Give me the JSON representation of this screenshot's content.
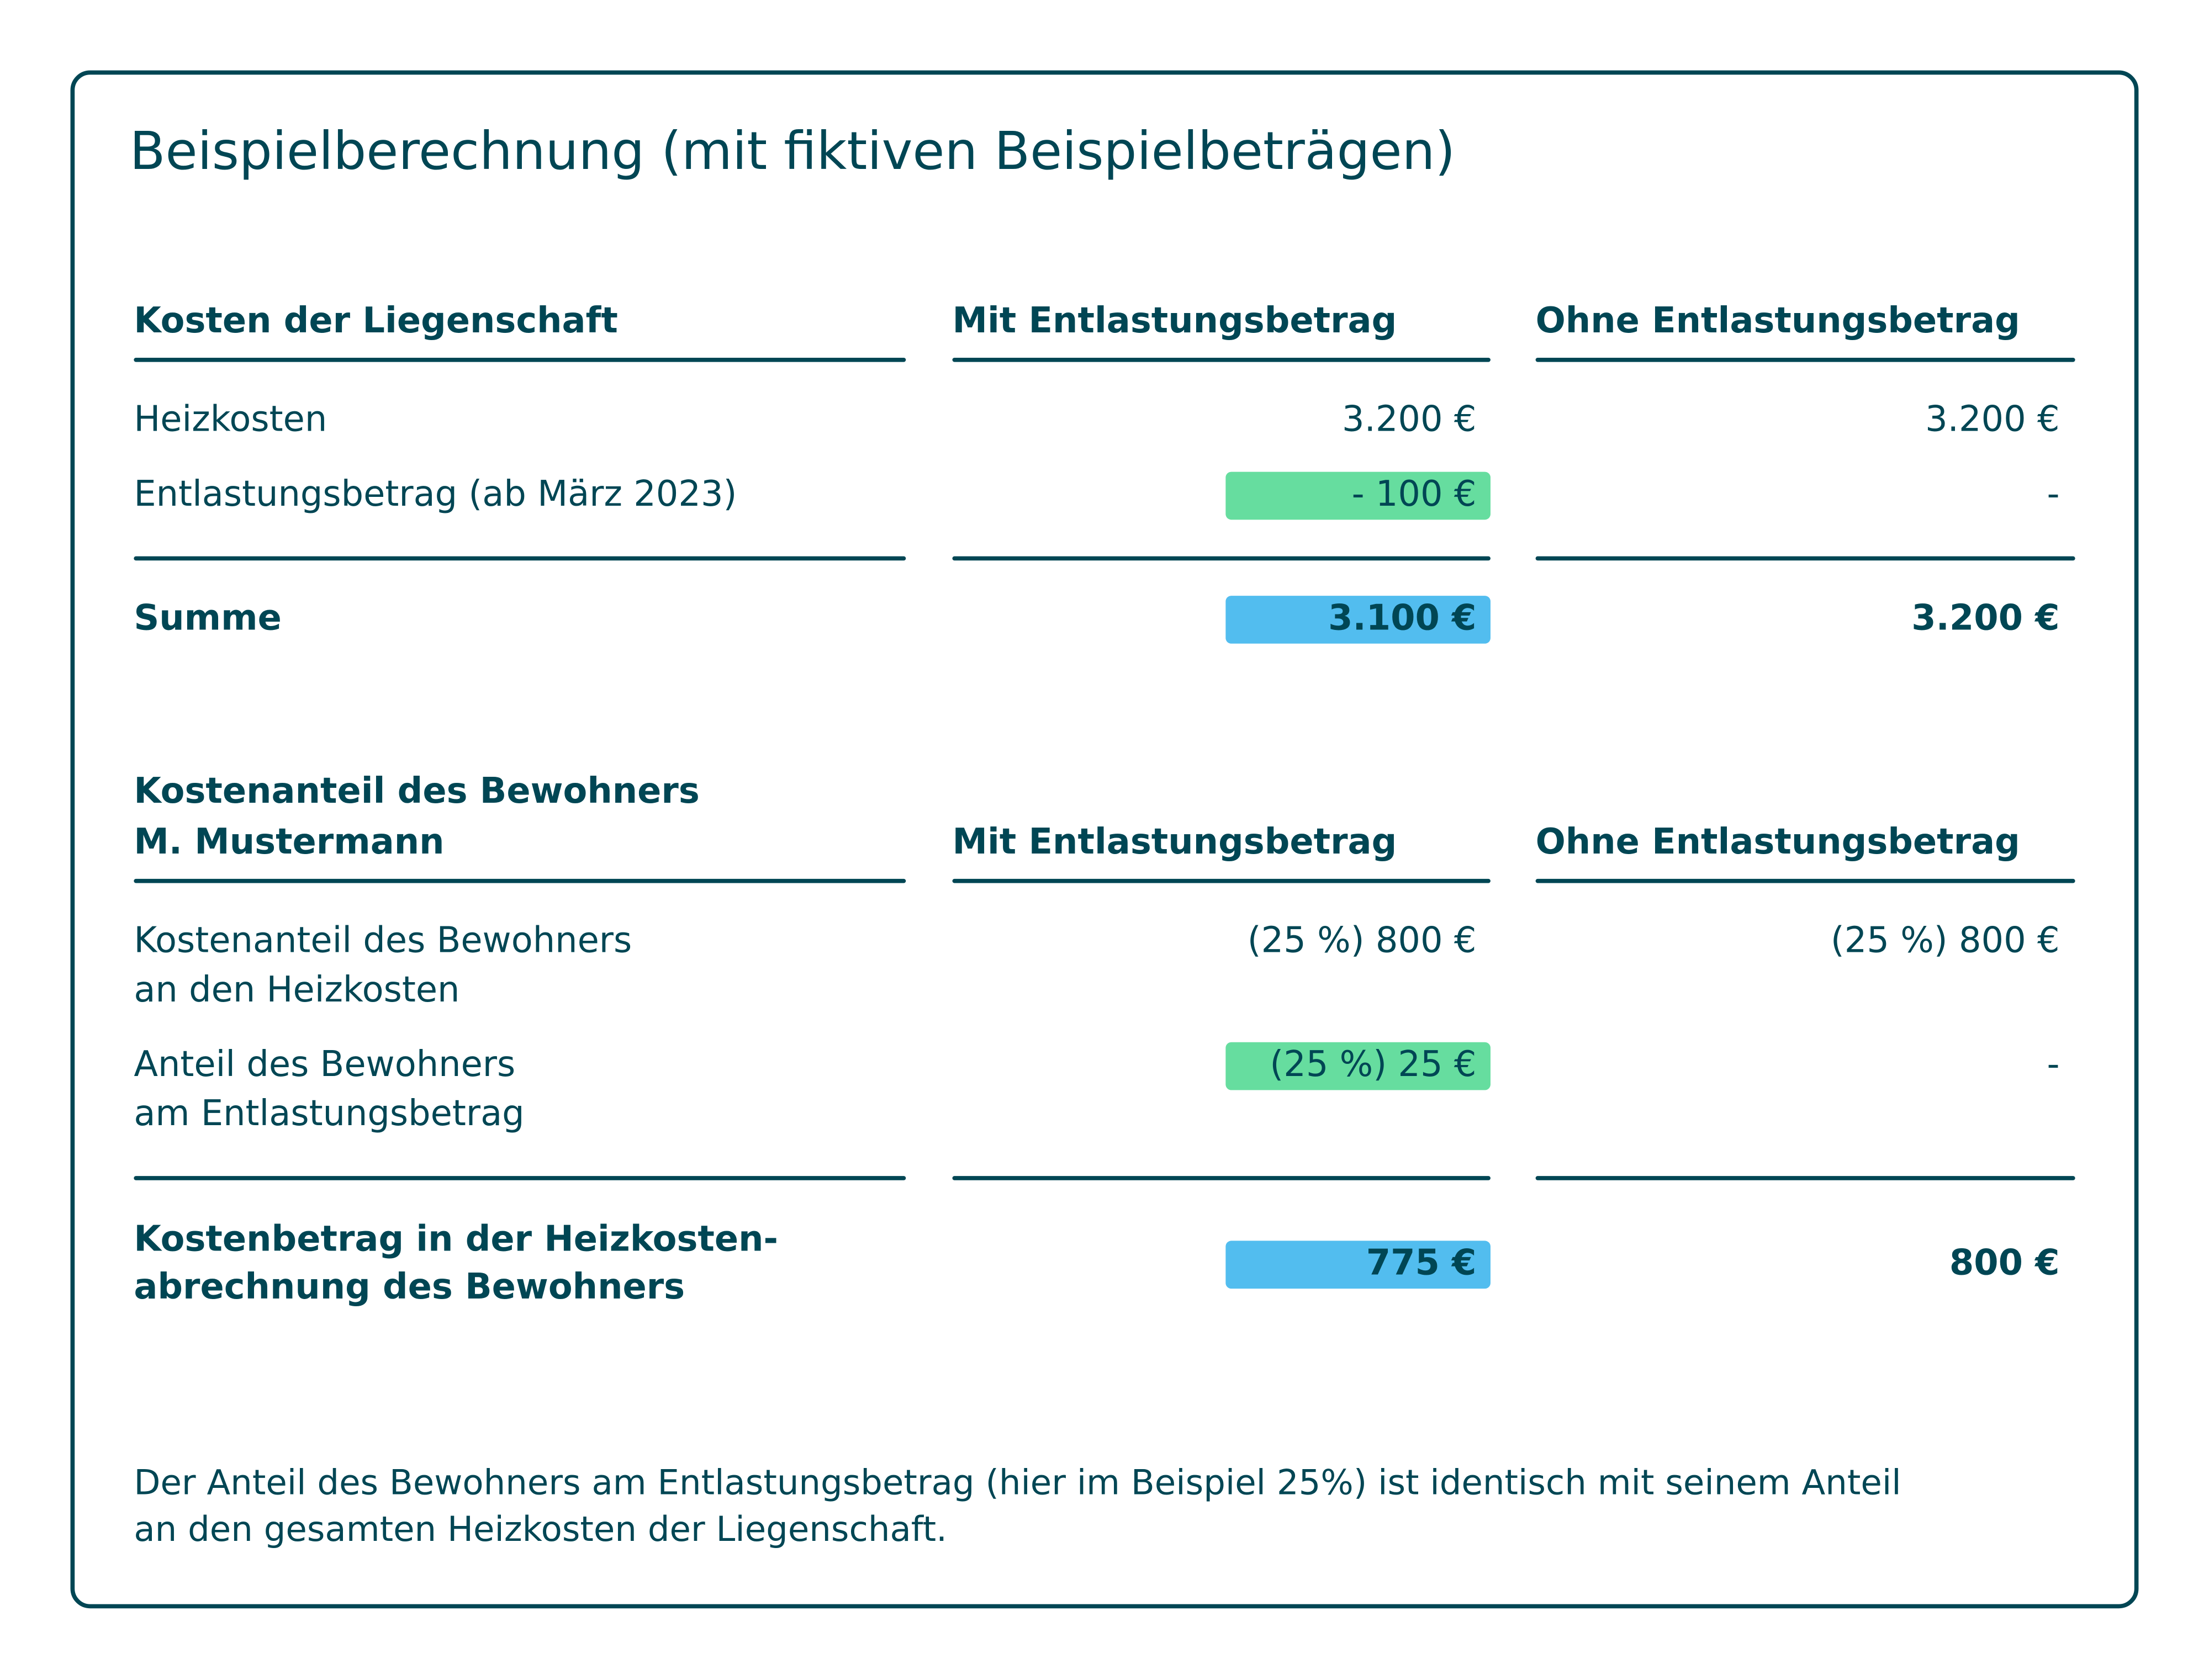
{
  "title": "Beispielberechnung (mit fiktiven Beispielbeträgen)",
  "section1": {
    "header": {
      "label": "Kosten der Liegenschaft",
      "col_mit": "Mit Entlastungsbetrag",
      "col_ohne": "Ohne Entlastungsbetrag"
    },
    "rows": [
      {
        "label": "Heizkosten",
        "mit": "3.200 €",
        "ohne": "3.200 €"
      },
      {
        "label": "Entlastungsbetrag (ab März 2023)",
        "mit": "- 100 €",
        "ohne": "-"
      }
    ],
    "total": {
      "label": "Summe",
      "mit": "3.100 €",
      "ohne": "3.200 €"
    }
  },
  "section2": {
    "header": {
      "label_line1": "Kostenanteil des Bewohners",
      "label_line2": "M. Mustermann",
      "col_mit": "Mit Entlastungsbetrag",
      "col_ohne": "Ohne Entlastungsbetrag"
    },
    "rows": [
      {
        "label_line1": "Kostenanteil des Bewohners",
        "label_line2": "an den Heizkosten",
        "mit": "(25 %) 800 €",
        "ohne": "(25 %) 800 €"
      },
      {
        "label_line1": "Anteil des Bewohners",
        "label_line2": "am Entlastungsbetrag",
        "mit": "(25 %) 25 €",
        "ohne": "-"
      }
    ],
    "total": {
      "label_line1": "Kostenbetrag in der Heizkosten-",
      "label_line2": "abrechnung des Bewohners",
      "mit": "775 €",
      "ohne": "800 €"
    }
  },
  "footnote": {
    "line1": "Der Anteil des Bewohners am Entlastungsbetrag (hier im Beispiel 25%) ist identisch mit seinem Anteil",
    "line2": "an den gesamten Heizkosten der Liegenschaft."
  },
  "colors": {
    "text": "#004654",
    "green": "#66DD9F",
    "blue": "#52BDEF"
  }
}
